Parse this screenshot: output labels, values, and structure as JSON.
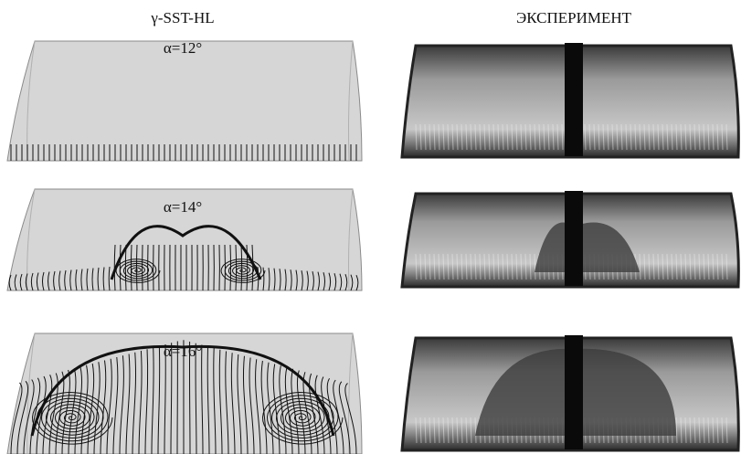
{
  "columns": {
    "left": "γ-SST-HL",
    "right": "ЭКСПЕРИМЕНТ"
  },
  "panels": [
    {
      "label": "α=12°"
    },
    {
      "label": "α=14°"
    },
    {
      "label": "α=16°"
    }
  ]
}
